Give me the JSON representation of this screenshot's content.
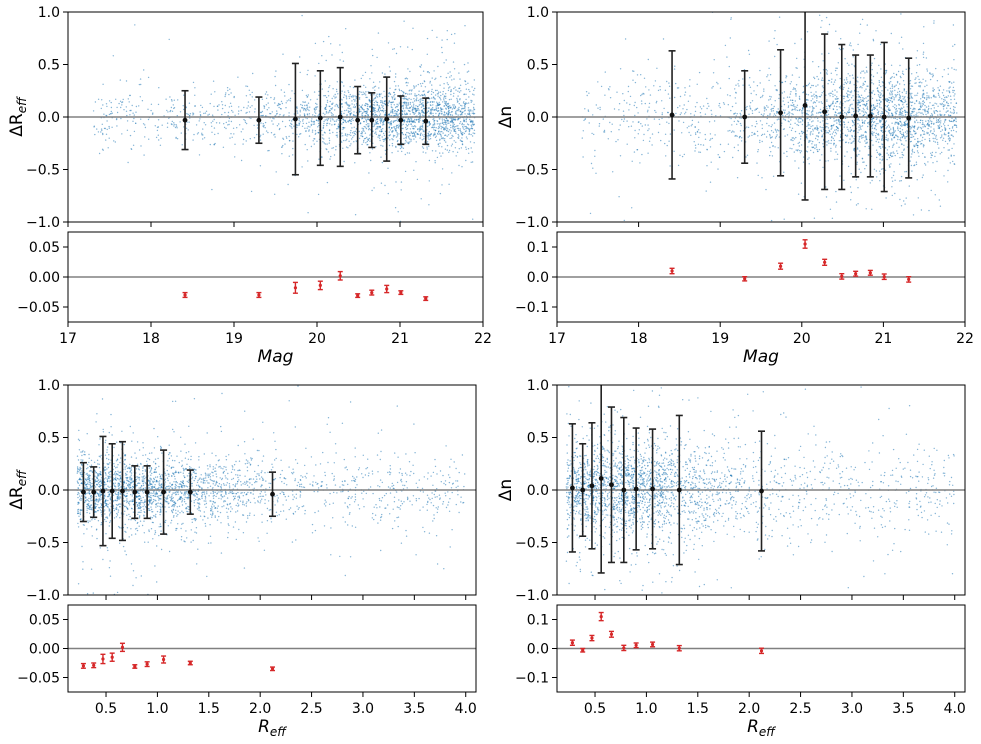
{
  "colors": {
    "scatter": "#1f77b4",
    "main_errorbar": "#222222",
    "residual_errorbar": "#d62728",
    "zero_line": "#808080"
  },
  "chart_data": [
    {
      "id": "p0",
      "panel": "top-left",
      "type": "scatter",
      "main": {
        "ylabel": "ΔR",
        "ylabel_sub": "eff",
        "xlim": [
          17,
          22
        ],
        "ylim": [
          -1.0,
          1.0
        ],
        "yticks": [
          -1.0,
          -0.5,
          0.0,
          0.5,
          1.0
        ],
        "ytick_labels": [
          "−1.0",
          "−0.5",
          "0.0",
          "0.5",
          "1.0"
        ],
        "scatter": {
          "x_range": [
            17.3,
            21.9
          ],
          "x_peak": 21.2,
          "spread": 0.15,
          "n": 2600
        },
        "points": [
          {
            "x": 18.41,
            "y": -0.03,
            "err": 0.28
          },
          {
            "x": 19.3,
            "y": -0.03,
            "err": 0.22
          },
          {
            "x": 19.74,
            "y": -0.02,
            "err": 0.53
          },
          {
            "x": 20.04,
            "y": -0.01,
            "err": 0.45
          },
          {
            "x": 20.28,
            "y": 0.0,
            "err": 0.47
          },
          {
            "x": 20.49,
            "y": -0.03,
            "err": 0.32
          },
          {
            "x": 20.66,
            "y": -0.03,
            "err": 0.26
          },
          {
            "x": 20.84,
            "y": -0.02,
            "err": 0.4
          },
          {
            "x": 21.01,
            "y": -0.03,
            "err": 0.23
          },
          {
            "x": 21.31,
            "y": -0.04,
            "err": 0.22
          }
        ]
      },
      "residual": {
        "ylim": [
          -0.075,
          0.075
        ],
        "yticks": [
          -0.05,
          0.0,
          0.05
        ],
        "ytick_labels": [
          "−0.05",
          "0.00",
          "0.05"
        ],
        "points": [
          {
            "x": 18.41,
            "y": -0.03,
            "err": 0.004
          },
          {
            "x": 19.3,
            "y": -0.03,
            "err": 0.004
          },
          {
            "x": 19.74,
            "y": -0.018,
            "err": 0.009
          },
          {
            "x": 20.04,
            "y": -0.014,
            "err": 0.007
          },
          {
            "x": 20.28,
            "y": 0.002,
            "err": 0.007
          },
          {
            "x": 20.49,
            "y": -0.031,
            "err": 0.003
          },
          {
            "x": 20.66,
            "y": -0.026,
            "err": 0.004
          },
          {
            "x": 20.84,
            "y": -0.02,
            "err": 0.006
          },
          {
            "x": 21.01,
            "y": -0.026,
            "err": 0.003
          },
          {
            "x": 21.31,
            "y": -0.036,
            "err": 0.003
          }
        ]
      },
      "xticks": [
        17,
        18,
        19,
        20,
        21,
        22
      ],
      "xtick_labels": [
        "17",
        "18",
        "19",
        "20",
        "21",
        "22"
      ],
      "xlabel": "Mag",
      "xlabel_sub": ""
    },
    {
      "id": "p1",
      "panel": "top-right",
      "type": "scatter",
      "main": {
        "ylabel": "Δn",
        "ylabel_sub": "",
        "xlim": [
          17,
          22
        ],
        "ylim": [
          -1.0,
          1.0
        ],
        "yticks": [
          -1.0,
          -0.5,
          0.0,
          0.5,
          1.0
        ],
        "ytick_labels": [
          "−1.0",
          "−0.5",
          "0.0",
          "0.5",
          "1.0"
        ],
        "scatter": {
          "x_range": [
            17.3,
            21.9
          ],
          "x_peak": 21.0,
          "spread": 0.22,
          "n": 2600
        },
        "points": [
          {
            "x": 18.41,
            "y": 0.02,
            "err": 0.61
          },
          {
            "x": 19.3,
            "y": 0.0,
            "err": 0.44
          },
          {
            "x": 19.74,
            "y": 0.04,
            "err": 0.6
          },
          {
            "x": 20.04,
            "y": 0.11,
            "err": 0.9
          },
          {
            "x": 20.28,
            "y": 0.05,
            "err": 0.74
          },
          {
            "x": 20.49,
            "y": 0.0,
            "err": 0.69
          },
          {
            "x": 20.66,
            "y": 0.01,
            "err": 0.58
          },
          {
            "x": 20.84,
            "y": 0.01,
            "err": 0.58
          },
          {
            "x": 21.01,
            "y": 0.0,
            "err": 0.71
          },
          {
            "x": 21.31,
            "y": -0.01,
            "err": 0.57
          }
        ]
      },
      "residual": {
        "ylim": [
          -0.15,
          0.15
        ],
        "yticks": [
          -0.1,
          0.0,
          0.1
        ],
        "ytick_labels": [
          "−0.1",
          "0.0",
          "0.1"
        ],
        "points": [
          {
            "x": 18.41,
            "y": 0.02,
            "err": 0.009
          },
          {
            "x": 19.3,
            "y": -0.006,
            "err": 0.007
          },
          {
            "x": 19.74,
            "y": 0.036,
            "err": 0.01
          },
          {
            "x": 20.04,
            "y": 0.11,
            "err": 0.014
          },
          {
            "x": 20.28,
            "y": 0.049,
            "err": 0.01
          },
          {
            "x": 20.49,
            "y": 0.002,
            "err": 0.009
          },
          {
            "x": 20.66,
            "y": 0.011,
            "err": 0.008
          },
          {
            "x": 20.84,
            "y": 0.014,
            "err": 0.008
          },
          {
            "x": 21.01,
            "y": 0.001,
            "err": 0.009
          },
          {
            "x": 21.31,
            "y": -0.008,
            "err": 0.009
          }
        ]
      },
      "xticks": [
        17,
        18,
        19,
        20,
        21,
        22
      ],
      "xtick_labels": [
        "17",
        "18",
        "19",
        "20",
        "21",
        "22"
      ],
      "xlabel": "Mag",
      "xlabel_sub": ""
    },
    {
      "id": "p2",
      "panel": "bottom-left",
      "type": "scatter",
      "main": {
        "ylabel": "ΔR",
        "ylabel_sub": "eff",
        "xlim": [
          0.13,
          4.1
        ],
        "ylim": [
          -1.0,
          1.0
        ],
        "yticks": [
          -1.0,
          -0.5,
          0.0,
          0.5,
          1.0
        ],
        "ytick_labels": [
          "−1.0",
          "−0.5",
          "0.0",
          "0.5",
          "1.0"
        ],
        "scatter": {
          "x_range": [
            0.22,
            4.0
          ],
          "x_peak": 0.6,
          "spread": 0.16,
          "n": 2600
        },
        "points": [
          {
            "x": 0.28,
            "y": -0.02,
            "err": 0.28
          },
          {
            "x": 0.38,
            "y": -0.02,
            "err": 0.24
          },
          {
            "x": 0.47,
            "y": -0.01,
            "err": 0.52
          },
          {
            "x": 0.56,
            "y": -0.01,
            "err": 0.45
          },
          {
            "x": 0.66,
            "y": -0.01,
            "err": 0.47
          },
          {
            "x": 0.78,
            "y": -0.02,
            "err": 0.25
          },
          {
            "x": 0.9,
            "y": -0.02,
            "err": 0.25
          },
          {
            "x": 1.06,
            "y": -0.02,
            "err": 0.4
          },
          {
            "x": 1.32,
            "y": -0.02,
            "err": 0.21
          },
          {
            "x": 2.12,
            "y": -0.04,
            "err": 0.21
          }
        ]
      },
      "residual": {
        "ylim": [
          -0.075,
          0.075
        ],
        "yticks": [
          -0.05,
          0.0,
          0.05
        ],
        "ytick_labels": [
          "−0.05",
          "0.00",
          "0.05"
        ],
        "points": [
          {
            "x": 0.28,
            "y": -0.03,
            "err": 0.004
          },
          {
            "x": 0.38,
            "y": -0.029,
            "err": 0.004
          },
          {
            "x": 0.47,
            "y": -0.018,
            "err": 0.008
          },
          {
            "x": 0.56,
            "y": -0.015,
            "err": 0.007
          },
          {
            "x": 0.66,
            "y": 0.002,
            "err": 0.007
          },
          {
            "x": 0.78,
            "y": -0.031,
            "err": 0.003
          },
          {
            "x": 0.9,
            "y": -0.027,
            "err": 0.004
          },
          {
            "x": 1.06,
            "y": -0.019,
            "err": 0.006
          },
          {
            "x": 1.32,
            "y": -0.025,
            "err": 0.003
          },
          {
            "x": 2.12,
            "y": -0.035,
            "err": 0.003
          }
        ]
      },
      "xticks": [
        0.5,
        1.0,
        1.5,
        2.0,
        2.5,
        3.0,
        3.5,
        4.0
      ],
      "xtick_labels": [
        "0.5",
        "1.0",
        "1.5",
        "2.0",
        "2.5",
        "3.0",
        "3.5",
        "4.0"
      ],
      "xlabel": "R",
      "xlabel_sub": "eff"
    },
    {
      "id": "p3",
      "panel": "bottom-right",
      "type": "scatter",
      "main": {
        "ylabel": "Δn",
        "ylabel_sub": "",
        "xlim": [
          0.13,
          4.1
        ],
        "ylim": [
          -1.0,
          1.0
        ],
        "yticks": [
          -1.0,
          -0.5,
          0.0,
          0.5,
          1.0
        ],
        "ytick_labels": [
          "−1.0",
          "−0.5",
          "0.0",
          "0.5",
          "1.0"
        ],
        "scatter": {
          "x_range": [
            0.22,
            4.0
          ],
          "x_peak": 0.6,
          "spread": 0.22,
          "n": 2600
        },
        "points": [
          {
            "x": 0.28,
            "y": 0.02,
            "err": 0.61
          },
          {
            "x": 0.38,
            "y": 0.0,
            "err": 0.44
          },
          {
            "x": 0.47,
            "y": 0.04,
            "err": 0.6
          },
          {
            "x": 0.56,
            "y": 0.11,
            "err": 0.9
          },
          {
            "x": 0.66,
            "y": 0.05,
            "err": 0.74
          },
          {
            "x": 0.78,
            "y": 0.0,
            "err": 0.69
          },
          {
            "x": 0.9,
            "y": 0.01,
            "err": 0.58
          },
          {
            "x": 1.06,
            "y": 0.01,
            "err": 0.57
          },
          {
            "x": 1.32,
            "y": 0.0,
            "err": 0.71
          },
          {
            "x": 2.12,
            "y": -0.01,
            "err": 0.57
          }
        ]
      },
      "residual": {
        "ylim": [
          -0.15,
          0.15
        ],
        "yticks": [
          -0.1,
          0.0,
          0.1
        ],
        "ytick_labels": [
          "−0.1",
          "0.0",
          "0.1"
        ],
        "points": [
          {
            "x": 0.28,
            "y": 0.02,
            "err": 0.009
          },
          {
            "x": 0.38,
            "y": -0.006,
            "err": 0.006
          },
          {
            "x": 0.47,
            "y": 0.036,
            "err": 0.009
          },
          {
            "x": 0.56,
            "y": 0.11,
            "err": 0.014
          },
          {
            "x": 0.66,
            "y": 0.049,
            "err": 0.01
          },
          {
            "x": 0.78,
            "y": 0.002,
            "err": 0.009
          },
          {
            "x": 0.9,
            "y": 0.011,
            "err": 0.008
          },
          {
            "x": 1.06,
            "y": 0.014,
            "err": 0.008
          },
          {
            "x": 1.32,
            "y": 0.001,
            "err": 0.009
          },
          {
            "x": 2.12,
            "y": -0.008,
            "err": 0.009
          }
        ]
      },
      "xticks": [
        0.5,
        1.0,
        1.5,
        2.0,
        2.5,
        3.0,
        3.5,
        4.0
      ],
      "xtick_labels": [
        "0.5",
        "1.0",
        "1.5",
        "2.0",
        "2.5",
        "3.0",
        "3.5",
        "4.0"
      ],
      "xlabel": "R",
      "xlabel_sub": "eff"
    }
  ]
}
